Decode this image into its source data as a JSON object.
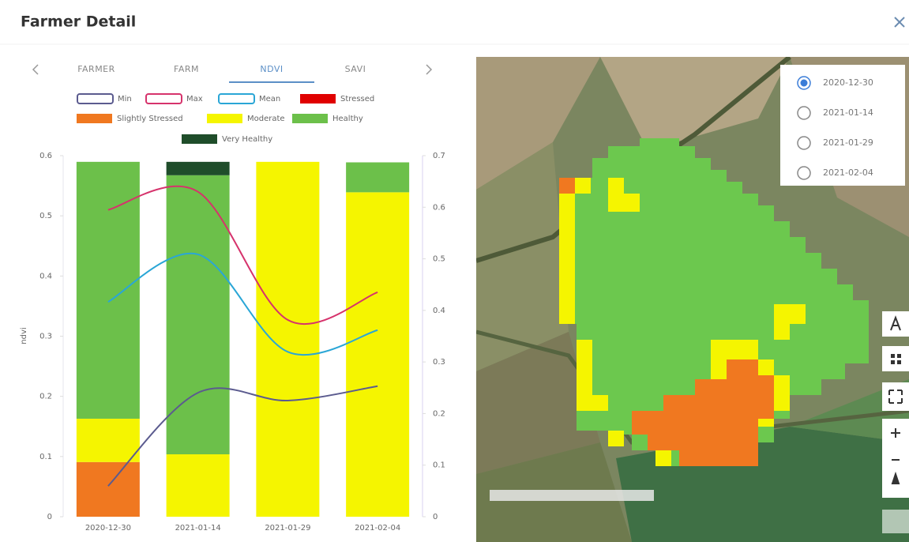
{
  "header": {
    "title": "Farmer Detail"
  },
  "tabs": [
    "FARMER",
    "FARM",
    "NDVI",
    "SAVI"
  ],
  "active_tab": 2,
  "chart_data": {
    "type": "bar",
    "ylabel": "ndvi",
    "categories": [
      "2020-12-30",
      "2021-01-14",
      "2021-01-29",
      "2021-02-04"
    ],
    "ylim": [
      0,
      0.6
    ],
    "yticks": [
      0,
      0.1,
      0.2,
      0.3,
      0.4,
      0.5,
      0.6
    ],
    "y2lim": [
      0,
      0.7
    ],
    "y2ticks": [
      0,
      0.1,
      0.2,
      0.3,
      0.4,
      0.5,
      0.6,
      0.7
    ],
    "series": [
      {
        "name": "Min",
        "type": "line",
        "color": "#5b5b8f",
        "values": [
          0.051,
          0.206,
          0.193,
          0.217
        ]
      },
      {
        "name": "Max",
        "type": "line",
        "color": "#d6336c",
        "values": [
          0.51,
          0.54,
          0.327,
          0.373
        ]
      },
      {
        "name": "Mean",
        "type": "line",
        "color": "#2aa6d6",
        "values": [
          0.357,
          0.436,
          0.274,
          0.31
        ]
      },
      {
        "name": "Stressed",
        "type": "bar",
        "axis": "y2",
        "color": "#e00000",
        "values": [
          0,
          0,
          0,
          0
        ]
      },
      {
        "name": "Slightly Stressed",
        "type": "bar",
        "axis": "y2",
        "color": "#f07820",
        "values": [
          0.106,
          0,
          0,
          0
        ]
      },
      {
        "name": "Moderate",
        "type": "bar",
        "axis": "y2",
        "color": "#f5f500",
        "values": [
          0.084,
          0.121,
          0.688,
          0.629
        ]
      },
      {
        "name": "Healthy",
        "type": "bar",
        "axis": "y2",
        "color": "#6cc04a",
        "values": [
          0.498,
          0.541,
          0,
          0.058
        ]
      },
      {
        "name": "Very Healthy",
        "type": "bar",
        "axis": "y2",
        "color": "#1f4d2a",
        "values": [
          0,
          0.026,
          0,
          0
        ]
      }
    ]
  },
  "map": {
    "dates": [
      "2020-12-30",
      "2021-01-14",
      "2021-01-29",
      "2021-02-04"
    ],
    "selected": 0
  }
}
